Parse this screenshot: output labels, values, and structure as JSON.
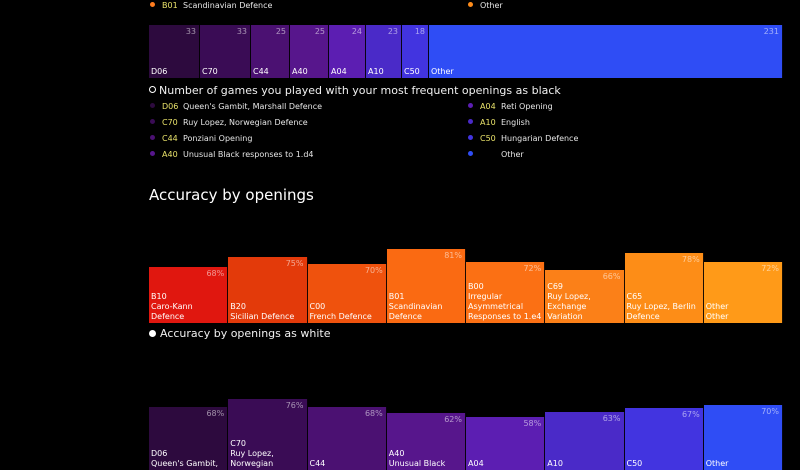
{
  "top_legend": {
    "left": {
      "code": "B01",
      "name": "Scandinavian Defence",
      "color": "#ff7c1e"
    },
    "right": {
      "code": "",
      "name": "Other",
      "color": "#ff8c1a"
    }
  },
  "black_games": {
    "caption": "Number of games you played with your most frequent openings as black",
    "chart_data": {
      "type": "bar",
      "categories": [
        "D06",
        "C70",
        "C44",
        "A40",
        "A04",
        "A10",
        "C50",
        "Other"
      ],
      "values": [
        33,
        33,
        25,
        25,
        24,
        23,
        18,
        231
      ],
      "colors": [
        "#2d0a3e",
        "#3a0c55",
        "#4b1172",
        "#57168c",
        "#5c1eb2",
        "#4a2ac8",
        "#4234e0",
        "#2f4df5"
      ]
    },
    "legend": [
      {
        "code": "D06",
        "name": "Queen's Gambit, Marshall Defence",
        "color": "#2d0a3e"
      },
      {
        "code": "C70",
        "name": "Ruy Lopez, Norwegian Defence",
        "color": "#3a0c55"
      },
      {
        "code": "C44",
        "name": "Ponziani Opening",
        "color": "#4b1172"
      },
      {
        "code": "A40",
        "name": "Unusual Black responses to 1.d4",
        "color": "#57168c"
      },
      {
        "code": "A04",
        "name": "Reti Opening",
        "color": "#5c1eb2"
      },
      {
        "code": "A10",
        "name": "English",
        "color": "#4a2ac8"
      },
      {
        "code": "C50",
        "name": "Hungarian Defence",
        "color": "#4234e0"
      },
      {
        "code": "",
        "name": "Other",
        "color": "#2f4df5"
      }
    ]
  },
  "accuracy": {
    "title": "Accuracy by openings",
    "chart_data": {
      "type": "bar",
      "categories": [
        "B10",
        "B20",
        "C00",
        "B01",
        "B00",
        "C69",
        "C65",
        "Other"
      ],
      "names": [
        "Caro-Kann Defence",
        "Sicilian Defence",
        "French Defence",
        "Scandinavian\nDefence",
        "Irregular\nAsymmetrical\nResponses to 1.e4",
        "Ruy Lopez,\nExchange Variation",
        "Ruy Lopez, Berlin\nDefence",
        "Other"
      ],
      "values": [
        68,
        75,
        70,
        81,
        72,
        66,
        78,
        72
      ],
      "value_labels": [
        "68%",
        "75%",
        "70%",
        "81%",
        "72%",
        "66%",
        "78%",
        "72%"
      ],
      "colors": [
        "#e0170f",
        "#e33a0a",
        "#ef520d",
        "#fa6a12",
        "#fb7014",
        "#fb8018",
        "#fd8d17",
        "#ff9a18"
      ]
    }
  },
  "accuracy_white": {
    "caption": "Accuracy by openings as white",
    "chart_data": {
      "type": "bar",
      "categories": [
        "D06",
        "C70",
        "C44",
        "A40",
        "A04",
        "A10",
        "C50",
        "Other"
      ],
      "names": [
        "Queen's Gambit,",
        "Ruy Lopez,\nNorwegian",
        "",
        "Unusual Black",
        "",
        "",
        "",
        ""
      ],
      "values": [
        68,
        76,
        68,
        62,
        58,
        63,
        67,
        70
      ],
      "value_labels": [
        "68%",
        "76%",
        "68%",
        "62%",
        "58%",
        "63%",
        "67%",
        "70%"
      ],
      "colors": [
        "#2d0a3e",
        "#3a0c55",
        "#4b1172",
        "#57168c",
        "#5c1eb2",
        "#4a2ac8",
        "#4234e0",
        "#2f4df5"
      ]
    }
  }
}
